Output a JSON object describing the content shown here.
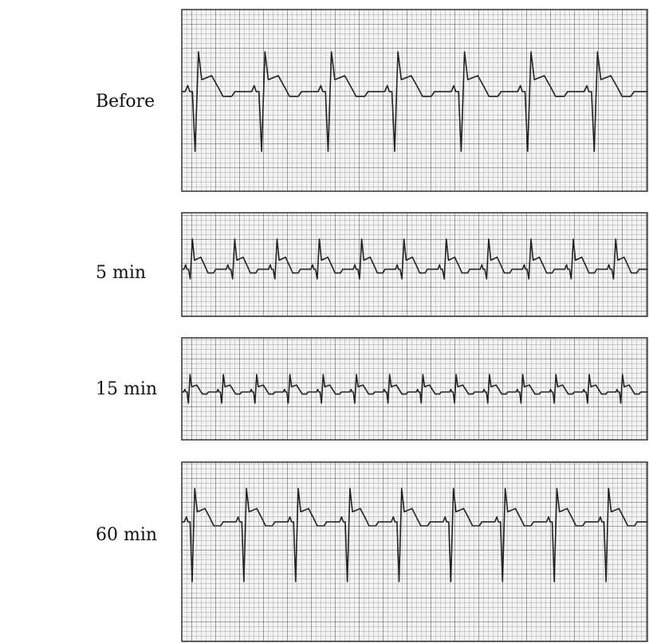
{
  "panels": [
    {
      "label": "Before"
    },
    {
      "label": "5 min"
    },
    {
      "label": "15 min"
    },
    {
      "label": "60 min"
    }
  ]
}
